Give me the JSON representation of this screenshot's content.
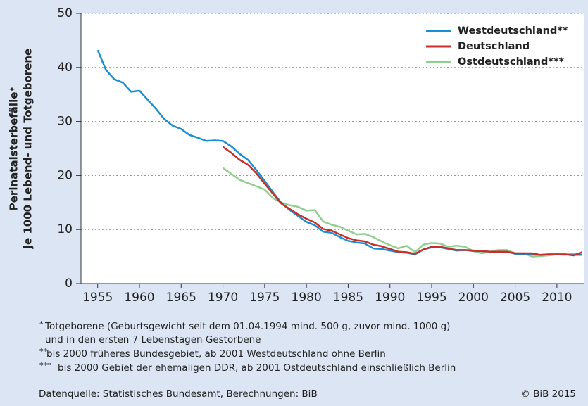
{
  "chart_data": {
    "type": "line",
    "ylabel": [
      "Perinatalsterbefälle*",
      "je 1000 Lebend- und Totgeborene"
    ],
    "x": [
      1955,
      1956,
      1957,
      1958,
      1959,
      1960,
      1961,
      1962,
      1963,
      1964,
      1965,
      1966,
      1967,
      1968,
      1969,
      1970,
      1971,
      1972,
      1973,
      1974,
      1975,
      1976,
      1977,
      1978,
      1979,
      1980,
      1981,
      1982,
      1983,
      1984,
      1985,
      1986,
      1987,
      1988,
      1989,
      1990,
      1991,
      1992,
      1993,
      1994,
      1995,
      1996,
      1997,
      1998,
      1999,
      2000,
      2001,
      2002,
      2003,
      2004,
      2005,
      2006,
      2007,
      2008,
      2009,
      2010,
      2011,
      2012,
      2013
    ],
    "xlim": [
      1953,
      2013.3
    ],
    "xticks": [
      1955,
      1960,
      1965,
      1970,
      1975,
      1980,
      1985,
      1990,
      1995,
      2000,
      2005,
      2010
    ],
    "ylim": [
      0,
      50
    ],
    "yticks": [
      0,
      10,
      20,
      30,
      40,
      50
    ],
    "grid": true,
    "legend": "top-right",
    "series": [
      {
        "name": "Westdeutschland**",
        "color": "#1a8fd0",
        "values": [
          43.2,
          39.5,
          37.8,
          37.2,
          35.5,
          35.7,
          34.0,
          32.3,
          30.4,
          29.2,
          28.6,
          27.5,
          27.0,
          26.4,
          26.5,
          26.4,
          25.4,
          24.0,
          22.9,
          21.0,
          19.0,
          16.9,
          14.9,
          13.6,
          12.5,
          11.4,
          10.8,
          9.6,
          9.4,
          8.6,
          7.9,
          7.6,
          7.4,
          6.5,
          6.4,
          6.1,
          5.8,
          5.7,
          5.4,
          6.3,
          6.7,
          6.7,
          6.4,
          6.1,
          6.2,
          6.0,
          6.0,
          5.9,
          5.9,
          5.9,
          5.5,
          5.5,
          5.5,
          5.3,
          5.4,
          5.4,
          5.4,
          5.3,
          5.3
        ]
      },
      {
        "name": "Deutschland",
        "color": "#c4302b",
        "values": [
          null,
          null,
          null,
          null,
          null,
          null,
          null,
          null,
          null,
          null,
          null,
          null,
          null,
          null,
          null,
          25.3,
          24.2,
          22.9,
          22.0,
          20.4,
          18.5,
          16.6,
          14.8,
          13.8,
          12.8,
          12.0,
          11.3,
          10.1,
          9.8,
          9.1,
          8.4,
          8.0,
          7.8,
          7.2,
          6.9,
          6.4,
          5.9,
          5.8,
          5.5,
          6.3,
          6.8,
          6.8,
          6.5,
          6.2,
          6.2,
          6.1,
          6.0,
          5.9,
          5.9,
          5.9,
          5.6,
          5.6,
          5.6,
          5.3,
          5.4,
          5.4,
          5.4,
          5.2,
          5.8
        ]
      },
      {
        "name": "Ostdeutschland***",
        "color": "#8fcf8f",
        "values": [
          null,
          null,
          null,
          null,
          null,
          null,
          null,
          null,
          null,
          null,
          null,
          null,
          null,
          null,
          null,
          21.4,
          20.3,
          19.2,
          18.6,
          18.0,
          17.4,
          15.8,
          15.0,
          14.5,
          14.2,
          13.5,
          13.6,
          11.5,
          10.9,
          10.5,
          9.8,
          9.1,
          9.2,
          8.6,
          7.8,
          7.1,
          6.5,
          7.0,
          5.8,
          7.2,
          7.5,
          7.4,
          6.8,
          7.0,
          6.8,
          6.0,
          5.6,
          5.9,
          6.2,
          6.2,
          5.6,
          5.6,
          5.0,
          5.1,
          5.2,
          5.4,
          5.3,
          5.5,
          5.5
        ]
      }
    ],
    "footnotes": [
      {
        "mark": "*",
        "lines": [
          "Totgeborene (Geburtsgewicht seit dem 01.04.1994 mind. 500 g, zuvor mind. 1000 g)",
          "und in den ersten 7 Lebenstagen Gestorbene"
        ]
      },
      {
        "mark": "**",
        "lines": [
          "bis 2000 früheres Bundesgebiet, ab 2001 Westdeutschland ohne Berlin"
        ]
      },
      {
        "mark": "***",
        "lines": [
          "bis 2000 Gebiet der ehemaligen DDR, ab 2001 Ostdeutschland einschließlich Berlin"
        ]
      }
    ],
    "source": "Datenquelle: Statistisches Bundesamt, Berechnungen: BiB",
    "copyright": "© BiB 2015"
  }
}
